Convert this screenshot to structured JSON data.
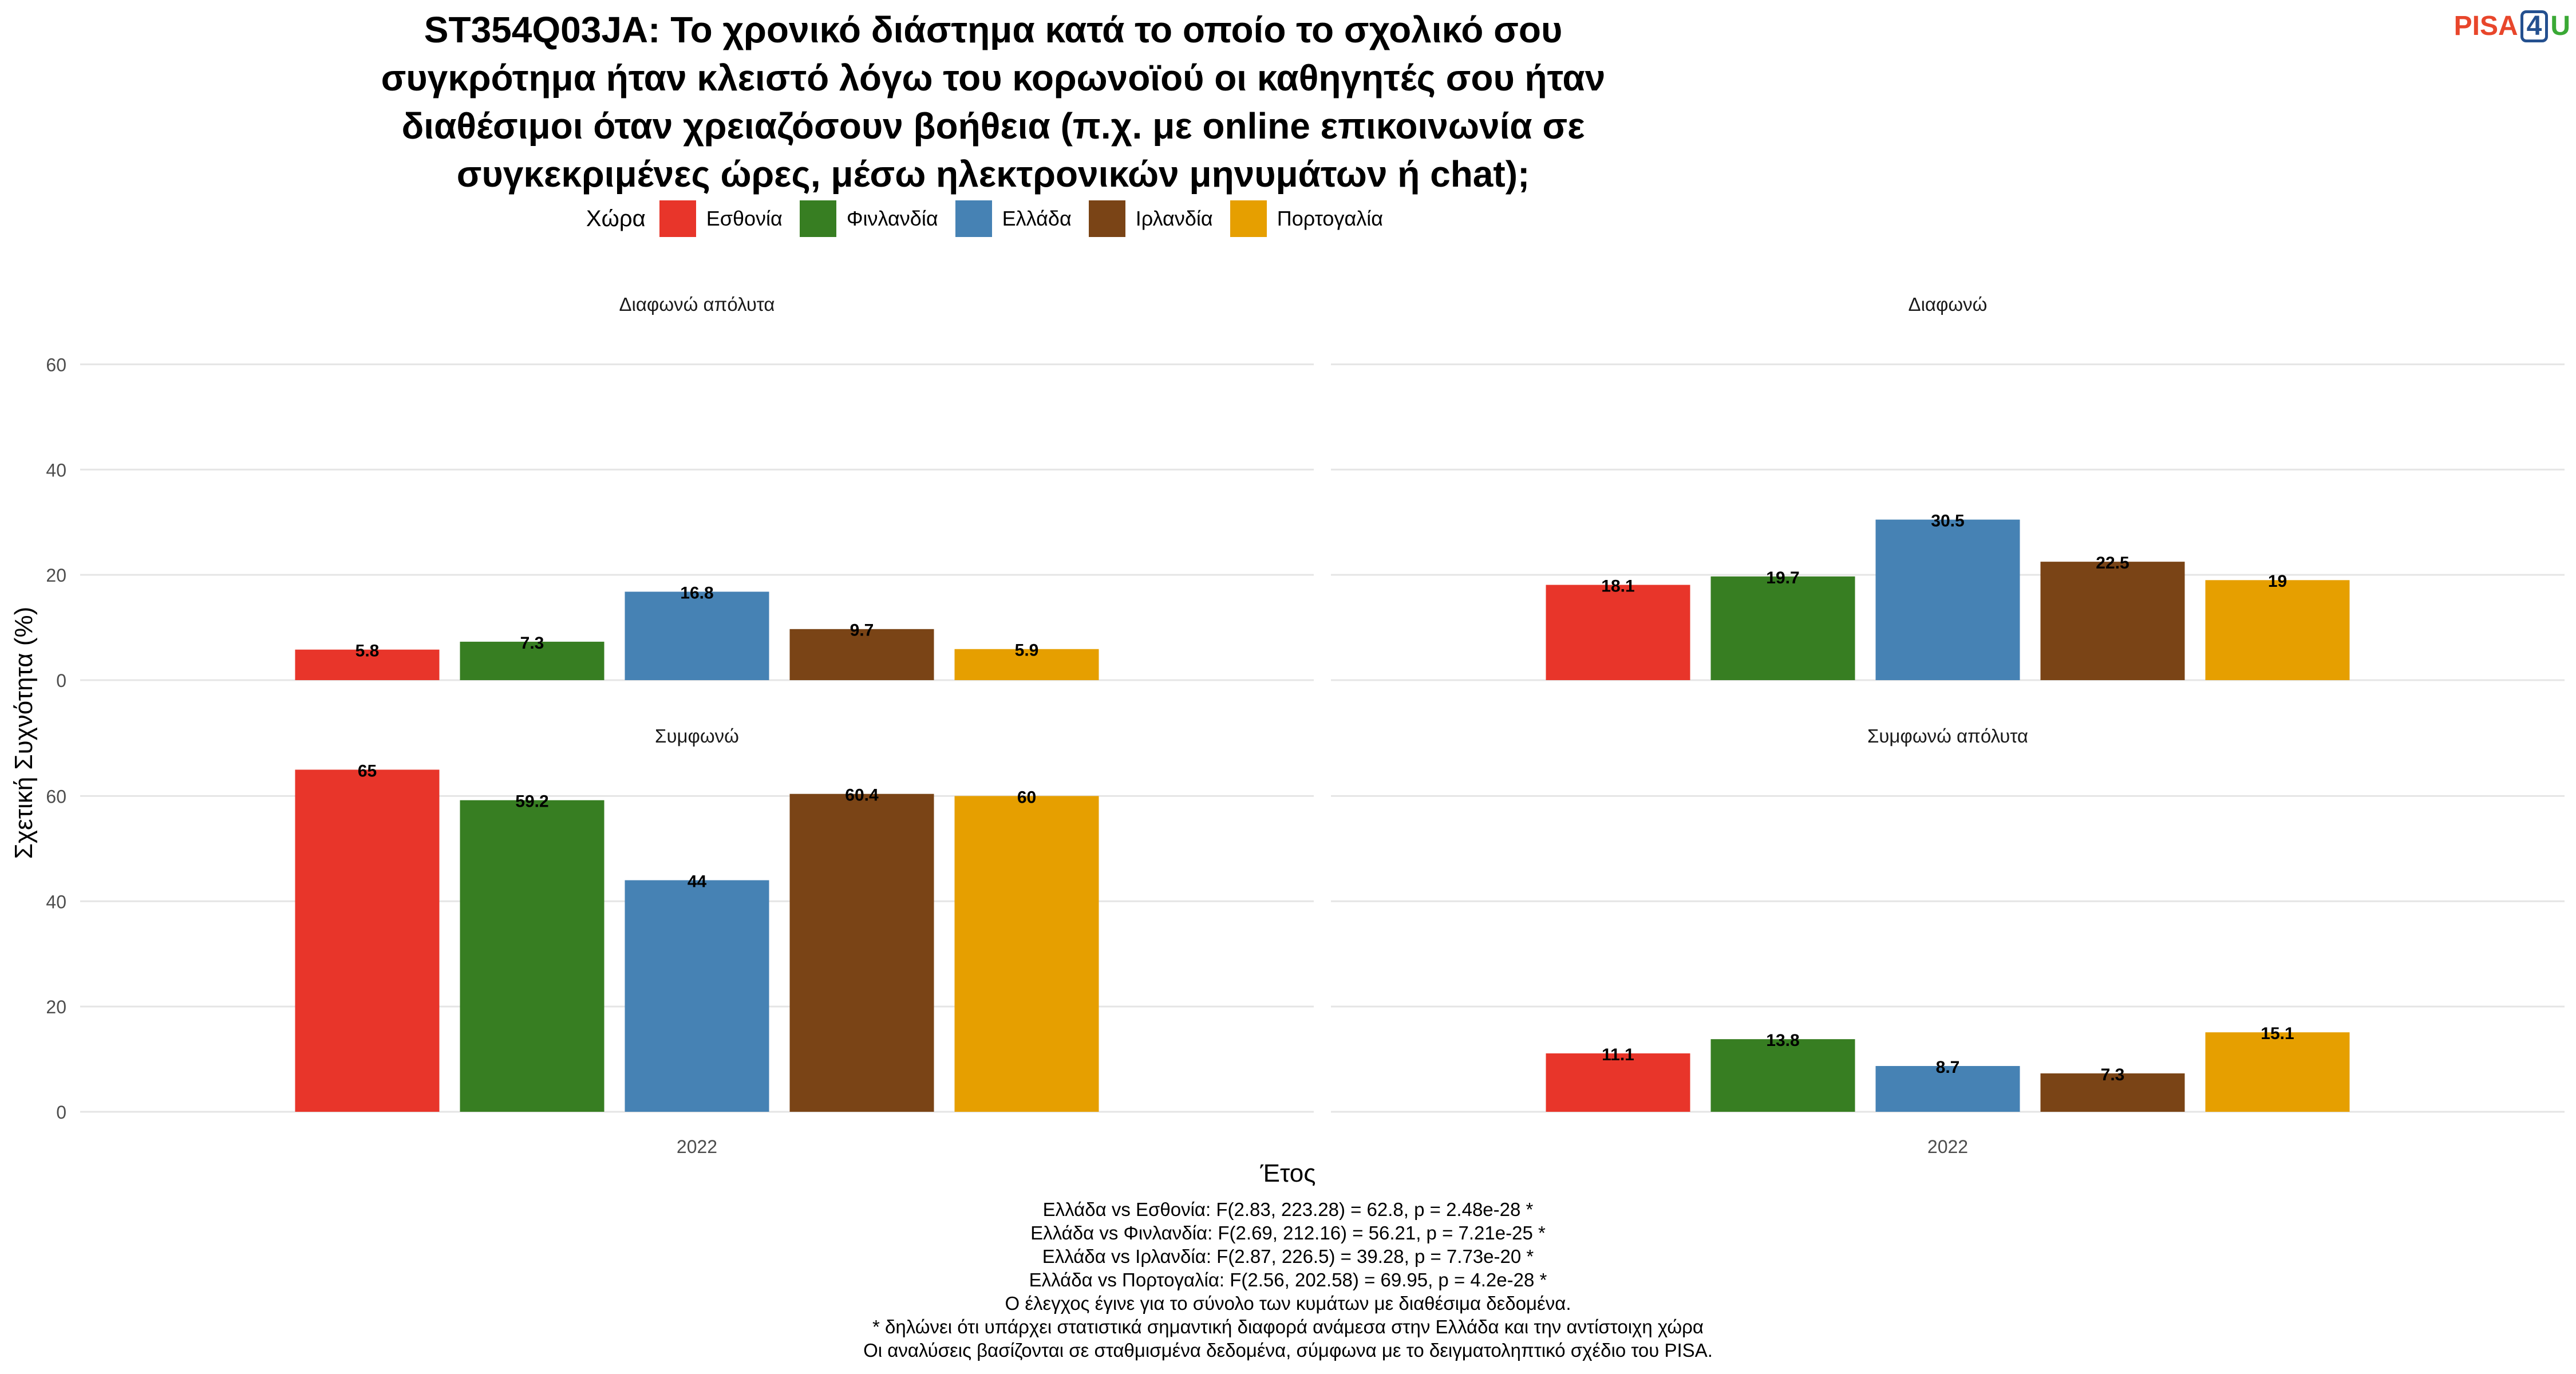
{
  "logo": {
    "pisa": "PISA",
    "four": "4",
    "u": "U"
  },
  "chart_data": {
    "type": "bar",
    "title_lines": [
      "ST354Q03JA: Το χρονικό διάστημα κατά το οποίο το σχολικό σου",
      "συγκρότημα ήταν κλειστό λόγω του κορωνοϊού οι καθηγητές σου ήταν",
      "διαθέσιμοι όταν χρειαζόσουν βοήθεια (π.χ. με online επικοινωνία σε",
      "συγκεκριμένες ώρες, μέσω ηλεκτρονικών μηνυμάτων ή chat);"
    ],
    "xlabel": "Έτος",
    "ylabel": "Σχετική Συχνότητα (%)",
    "ylim": [
      0,
      62
    ],
    "yticks": [
      0,
      20,
      40,
      60
    ],
    "grid": true,
    "legend_title": "Χώρα",
    "legend_position": "top",
    "categories": [
      "2022"
    ],
    "series": [
      {
        "name": "Εσθονία",
        "color": "#e8352a"
      },
      {
        "name": "Φινλανδία",
        "color": "#377e22"
      },
      {
        "name": "Ελλάδα",
        "color": "#4682b4"
      },
      {
        "name": "Ιρλανδία",
        "color": "#7a4416"
      },
      {
        "name": "Πορτογαλία",
        "color": "#e69f00"
      }
    ],
    "panels": [
      {
        "title": "Διαφωνώ απόλυτα",
        "values": [
          5.8,
          7.3,
          16.8,
          9.7,
          5.9
        ],
        "labels": [
          "5.8",
          "7.3",
          "16.8",
          "9.7",
          "5.9"
        ]
      },
      {
        "title": "Διαφωνώ",
        "values": [
          18.1,
          19.7,
          30.5,
          22.5,
          19
        ],
        "labels": [
          "18.1",
          "19.7",
          "30.5",
          "22.5",
          "19"
        ]
      },
      {
        "title": "Συμφωνώ",
        "values": [
          65,
          59.2,
          44,
          60.4,
          60
        ],
        "labels": [
          "65",
          "59.2",
          "44",
          "60.4",
          "60"
        ]
      },
      {
        "title": "Συμφωνώ απόλυτα",
        "values": [
          11.1,
          13.8,
          8.7,
          7.3,
          15.1
        ],
        "labels": [
          "11.1",
          "13.8",
          "8.7",
          "7.3",
          "15.1"
        ]
      }
    ]
  },
  "notes": [
    "Ελλάδα vs Εσθονία: F(2.83, 223.28) = 62.8, p = 2.48e-28 *",
    "Ελλάδα vs Φινλανδία: F(2.69, 212.16) = 56.21, p = 7.21e-25 *",
    "Ελλάδα vs Ιρλανδία: F(2.87, 226.5) = 39.28, p = 7.73e-20 *",
    "Ελλάδα vs Πορτογαλία: F(2.56, 202.58) = 69.95, p = 4.2e-28 *",
    "Ο έλεγχος έγινε για το σύνολο των κυμάτων με διαθέσιμα δεδομένα.",
    "* δηλώνει ότι υπάρχει στατιστικά σημαντική διαφορά ανάμεσα στην Ελλάδα και την αντίστοιχη χώρα",
    "Οι αναλύσεις βασίζονται σε σταθμισμένα δεδομένα, σύμφωνα με το δειγματοληπτικό σχέδιο του PISA."
  ]
}
